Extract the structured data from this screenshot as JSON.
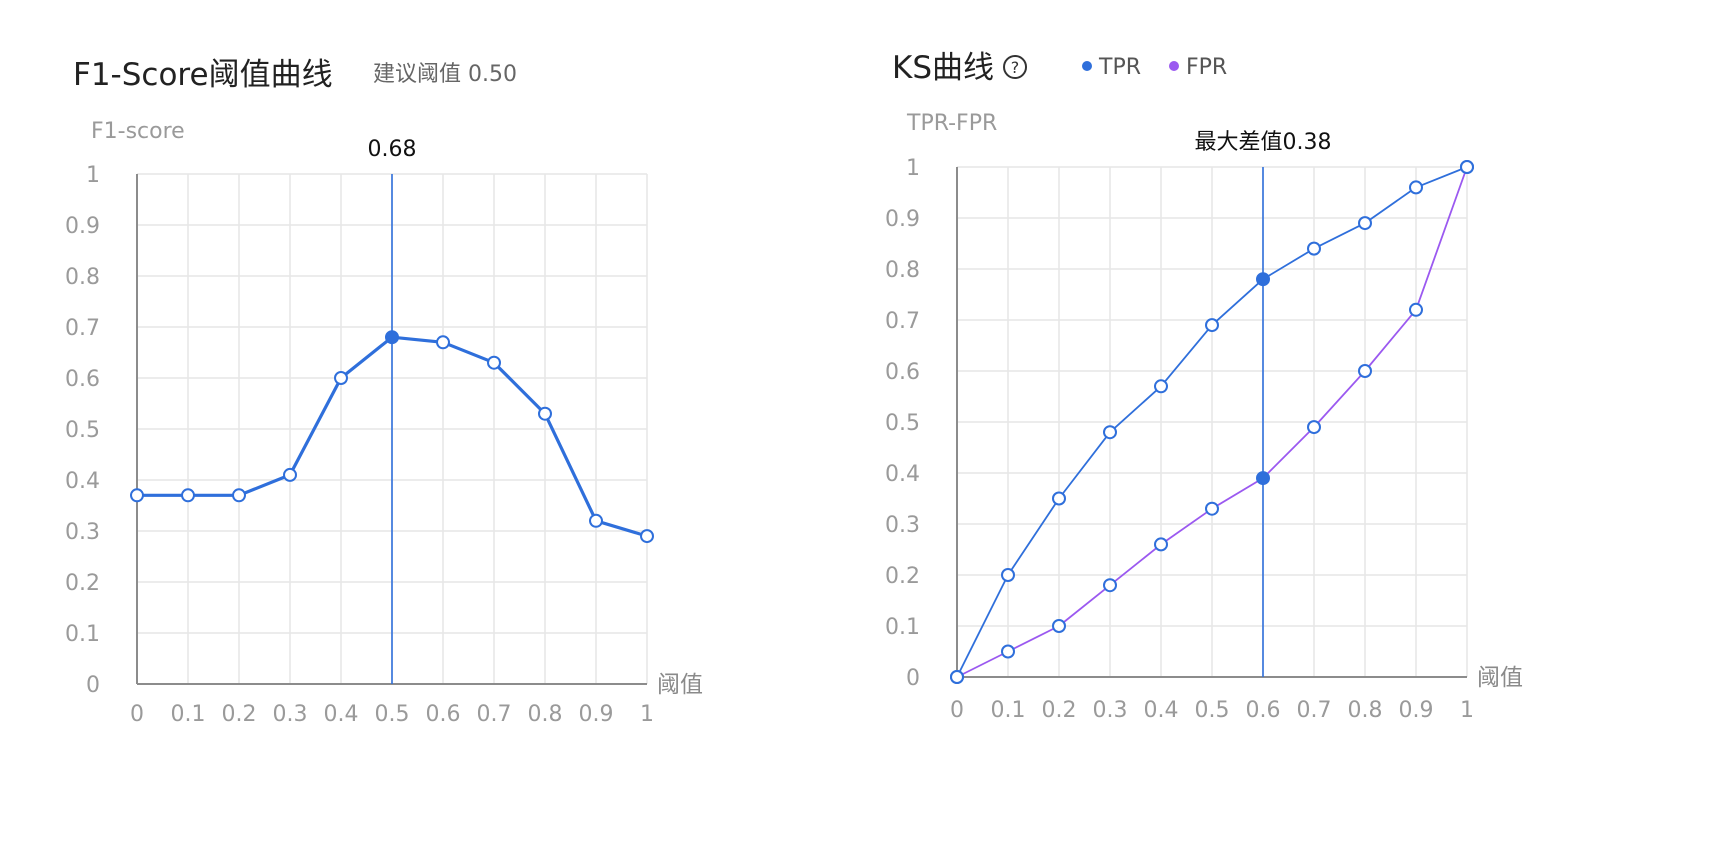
{
  "chart_data": [
    {
      "type": "line",
      "title": "F1-Score阈值曲线",
      "subtitle": "建议阈值 0.50",
      "ylabel": "F1-score",
      "xlabel": "阈值",
      "xlim": [
        0,
        1
      ],
      "ylim": [
        0,
        1
      ],
      "x_ticks": [
        "0",
        "0.1",
        "0.2",
        "0.3",
        "0.4",
        "0.5",
        "0.6",
        "0.7",
        "0.8",
        "0.9",
        "1"
      ],
      "y_ticks": [
        "0",
        "0.1",
        "0.2",
        "0.3",
        "0.4",
        "0.5",
        "0.6",
        "0.7",
        "0.8",
        "0.9",
        "1"
      ],
      "grid": true,
      "series": [
        {
          "name": "",
          "color": "#2f6fdb",
          "x": [
            0,
            0.1,
            0.2,
            0.3,
            0.4,
            0.5,
            0.6,
            0.7,
            0.8,
            0.9,
            1
          ],
          "values": [
            0.37,
            0.37,
            0.37,
            0.41,
            0.6,
            0.68,
            0.67,
            0.63,
            0.53,
            0.32,
            0.29
          ]
        }
      ],
      "marker": {
        "x": 0.5,
        "label": "0.68",
        "color": "#2f6fdb"
      }
    },
    {
      "type": "line",
      "title": "KS曲线",
      "title_icon": "help-circle-icon",
      "ylabel": "TPR-FPR",
      "xlabel": "阈值",
      "xlim": [
        0,
        1
      ],
      "ylim": [
        0,
        1
      ],
      "x_ticks": [
        "0",
        "0.1",
        "0.2",
        "0.3",
        "0.4",
        "0.5",
        "0.6",
        "0.7",
        "0.8",
        "0.9",
        "1"
      ],
      "y_ticks": [
        "0",
        "0.1",
        "0.2",
        "0.3",
        "0.4",
        "0.5",
        "0.6",
        "0.7",
        "0.8",
        "0.9",
        "1"
      ],
      "grid": true,
      "legend_position": "top",
      "series": [
        {
          "name": "TPR",
          "color": "#2f6fdb",
          "x": [
            0,
            0.1,
            0.2,
            0.3,
            0.4,
            0.5,
            0.6,
            0.7,
            0.8,
            0.9,
            1
          ],
          "values": [
            0,
            0.2,
            0.35,
            0.48,
            0.57,
            0.69,
            0.78,
            0.84,
            0.89,
            0.96,
            1
          ]
        },
        {
          "name": "FPR",
          "color": "#9b59f0",
          "x": [
            0,
            0.1,
            0.2,
            0.3,
            0.4,
            0.5,
            0.6,
            0.7,
            0.8,
            0.9,
            1
          ],
          "values": [
            0,
            0.05,
            0.1,
            0.18,
            0.26,
            0.33,
            0.39,
            0.49,
            0.6,
            0.72,
            1
          ]
        }
      ],
      "marker": {
        "x": 0.6,
        "label": "最大差值0.38",
        "color": "#2f6fdb"
      }
    }
  ]
}
